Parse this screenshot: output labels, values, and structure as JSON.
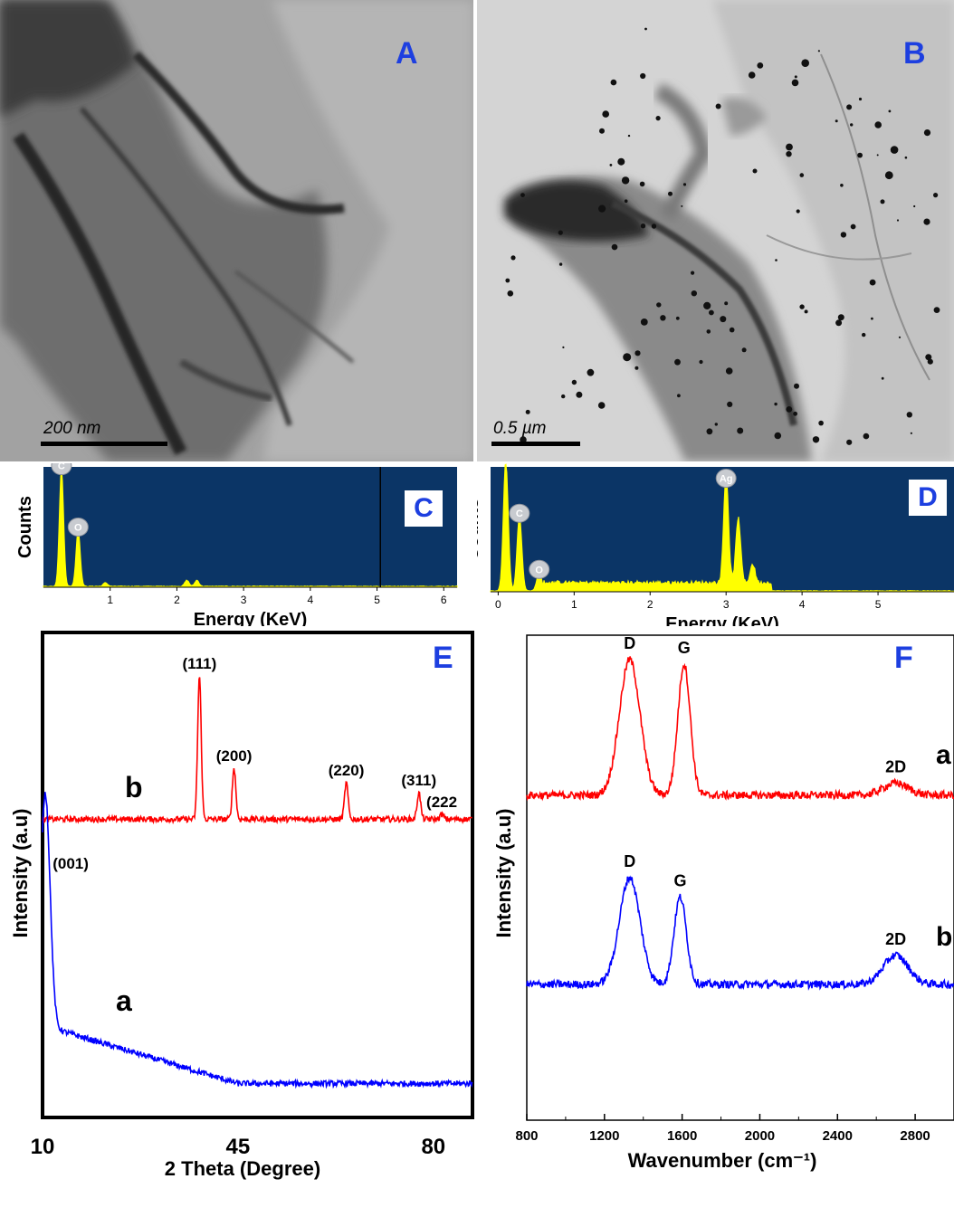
{
  "panels": {
    "A": {
      "letter": "A",
      "scale_label": "200 nm"
    },
    "B": {
      "letter": "B",
      "scale_label": "0.5 µm"
    }
  },
  "colors": {
    "eds_background": "#0b3566",
    "eds_trace": "#ffff00",
    "panel_letter": "#1d3fe0",
    "series_red": "#ff0000",
    "series_blue": "#0000ff"
  },
  "chart_data": [
    {
      "id": "C",
      "type": "area",
      "panel_letter": "C",
      "xlabel": "Energy (KeV)",
      "ylabel": "Counts",
      "xlim": [
        0,
        6.2
      ],
      "xticks": [
        1,
        2,
        3,
        4,
        5,
        6
      ],
      "peaks": [
        {
          "element": "C",
          "x": 0.27,
          "height": 0.98
        },
        {
          "element": "O",
          "x": 0.52,
          "height": 0.47
        },
        {
          "element": "",
          "x": 0.93,
          "height": 0.03
        },
        {
          "element": "",
          "x": 2.15,
          "height": 0.05
        },
        {
          "element": "",
          "x": 2.3,
          "height": 0.05
        }
      ],
      "marker_line_x": 5.05
    },
    {
      "id": "D",
      "type": "area",
      "panel_letter": "D",
      "xlabel": "Energy (KeV)",
      "ylabel": "Counts",
      "xlim": [
        -0.1,
        6.0
      ],
      "xticks": [
        0,
        1,
        2,
        3,
        4,
        5
      ],
      "peaks": [
        {
          "element": "",
          "x": 0.1,
          "height": 1.05
        },
        {
          "element": "C",
          "x": 0.28,
          "height": 0.6
        },
        {
          "element": "O",
          "x": 0.54,
          "height": 0.15
        },
        {
          "element": "Ag",
          "x": 3.0,
          "height": 0.88
        },
        {
          "element": "",
          "x": 3.16,
          "height": 0.52
        },
        {
          "element": "",
          "x": 3.35,
          "height": 0.15
        }
      ]
    },
    {
      "id": "E",
      "type": "line",
      "panel_letter": "E",
      "xlabel": "2 Theta (Degree)",
      "ylabel": "Intensity (a.u)",
      "xlim": [
        10,
        87
      ],
      "xticks": [
        10,
        45,
        80
      ],
      "series": [
        {
          "name": "b",
          "color": "#ff0000",
          "baseline": 0.615,
          "peaks": [
            {
              "label": "(111)",
              "x": 38.1,
              "height": 0.91
            },
            {
              "label": "(200)",
              "x": 44.3,
              "height": 0.72
            },
            {
              "label": "(220)",
              "x": 64.4,
              "height": 0.69
            },
            {
              "label": "(311)",
              "x": 77.4,
              "height": 0.67
            },
            {
              "label": "(222",
              "x": 81.5,
              "height": 0.625
            }
          ]
        },
        {
          "name": "a",
          "color": "#0000ff",
          "baseline": 0.07,
          "peaks": [
            {
              "label": "(001)",
              "x": 10.5,
              "height": 0.55
            }
          ]
        }
      ]
    },
    {
      "id": "F",
      "type": "line",
      "panel_letter": "F",
      "xlabel": "Wavenumber (cm⁻¹)",
      "ylabel": "Intensity (a.u)",
      "xlim": [
        800,
        3000
      ],
      "xticks": [
        800,
        1200,
        1600,
        2000,
        2400,
        2800
      ],
      "series": [
        {
          "name": "a",
          "color": "#ff0000",
          "baseline": 0.67,
          "peaks": [
            {
              "label": "D",
              "x": 1330,
              "height": 0.95
            },
            {
              "label": "G",
              "x": 1610,
              "height": 0.94
            },
            {
              "label": "2D",
              "x": 2700,
              "height": 0.695
            }
          ]
        },
        {
          "name": "b",
          "color": "#0000ff",
          "baseline": 0.28,
          "peaks": [
            {
              "label": "D",
              "x": 1330,
              "height": 0.5
            },
            {
              "label": "G",
              "x": 1590,
              "height": 0.46
            },
            {
              "label": "2D",
              "x": 2700,
              "height": 0.34
            }
          ]
        }
      ]
    }
  ]
}
